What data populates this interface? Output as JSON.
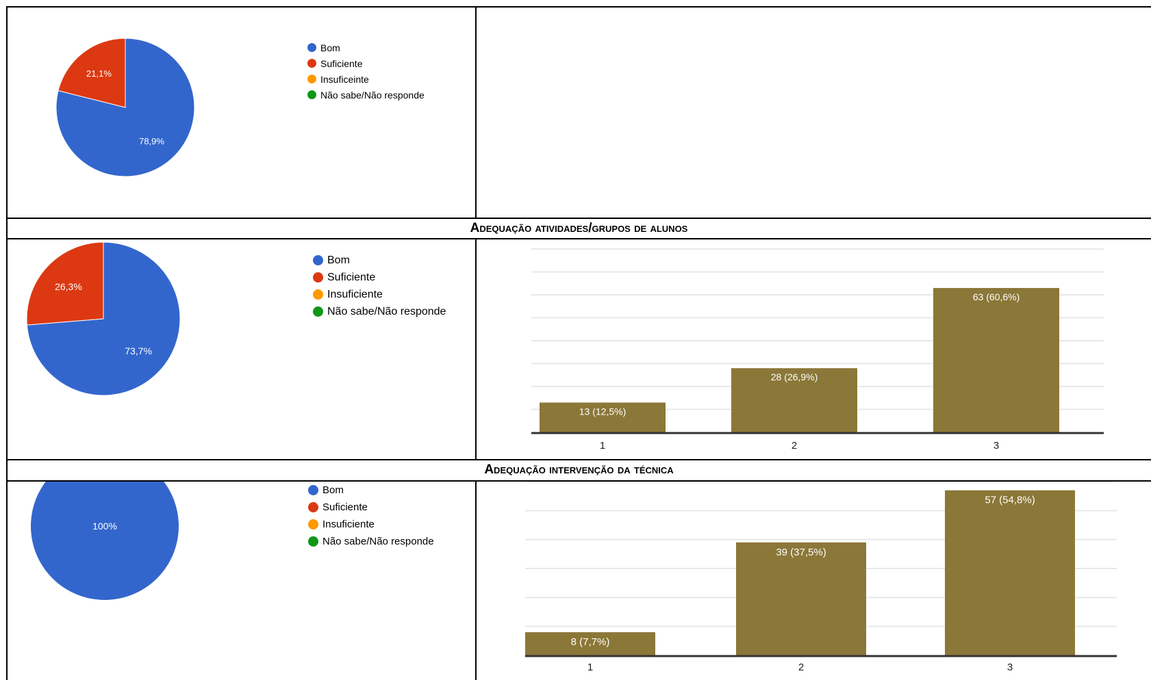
{
  "sections": [
    {
      "title": ""
    },
    {
      "title": "Adequação atividades/grupos de alunos"
    },
    {
      "title": "Adequação intervenção da técnica"
    }
  ],
  "legend_items": [
    {
      "label": "Bom",
      "color": "#3366cc"
    },
    {
      "label": "Suficiente",
      "color": "#dc3912"
    },
    {
      "label": "Insuficeinte",
      "color": "#ff9900"
    },
    {
      "label": "Não sabe/Não responde",
      "color": "#109618"
    }
  ],
  "legend_items_alt": [
    {
      "label": "Bom",
      "color": "#3366cc"
    },
    {
      "label": "Suficiente",
      "color": "#dc3912"
    },
    {
      "label": "Insuficiente",
      "color": "#ff9900"
    },
    {
      "label": "Não sabe/Não responde",
      "color": "#109618"
    }
  ],
  "chart_data": [
    {
      "type": "pie",
      "categories": [
        "Bom",
        "Suficiente",
        "Insuficeinte",
        "Não sabe/Não responde"
      ],
      "values": [
        78.9,
        21.1,
        0,
        0
      ],
      "labels": [
        "78,9%",
        "21,1%",
        "",
        ""
      ],
      "colors": [
        "#3366cc",
        "#dc3912",
        "#ff9900",
        "#109618"
      ],
      "legend": "right"
    },
    {
      "type": "pie",
      "categories": [
        "Bom",
        "Suficiente",
        "Insuficiente",
        "Não sabe/Não responde"
      ],
      "values": [
        73.7,
        26.3,
        0,
        0
      ],
      "labels": [
        "73,7%",
        "26,3%",
        "",
        ""
      ],
      "colors": [
        "#3366cc",
        "#dc3912",
        "#ff9900",
        "#109618"
      ],
      "legend": "right"
    },
    {
      "type": "bar",
      "categories": [
        "1",
        "2",
        "3"
      ],
      "values": [
        13,
        28,
        63
      ],
      "labels": [
        "13 (12,5%)",
        "28 (26,9%)",
        "63 (60,6%)"
      ],
      "color": "#8b7738",
      "ylim": [
        0,
        80
      ],
      "grid": true
    },
    {
      "type": "pie",
      "categories": [
        "Bom",
        "Suficiente",
        "Insuficiente",
        "Não sabe/Não responde"
      ],
      "values": [
        100,
        0,
        0,
        0
      ],
      "labels": [
        "100%",
        "",
        "",
        ""
      ],
      "colors": [
        "#3366cc",
        "#dc3912",
        "#ff9900",
        "#109618"
      ],
      "legend": "right"
    },
    {
      "type": "bar",
      "categories": [
        "1",
        "2",
        "3"
      ],
      "values": [
        8,
        39,
        57
      ],
      "labels": [
        "8 (7,7%)",
        "39 (37,5%)",
        "57 (54,8%)"
      ],
      "color": "#8b7738",
      "ylim": [
        0,
        60
      ],
      "grid": true
    }
  ]
}
